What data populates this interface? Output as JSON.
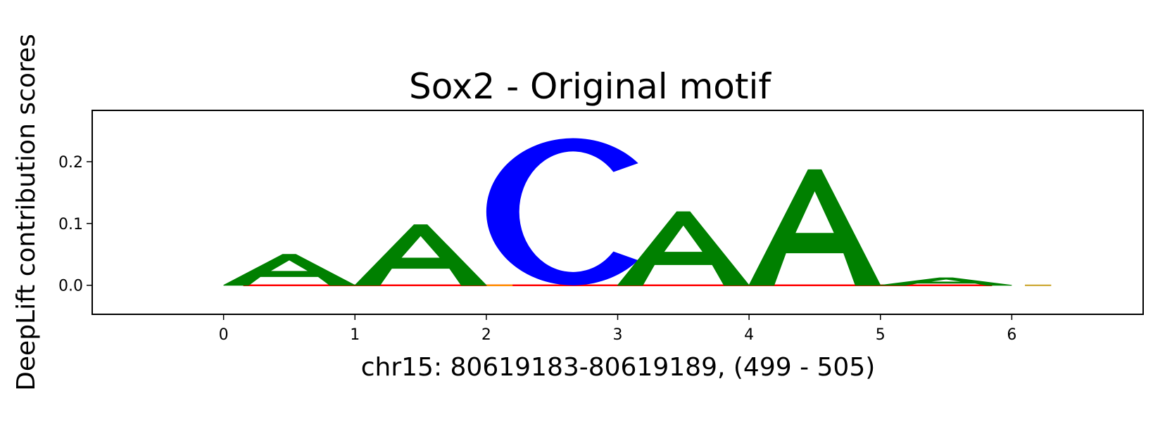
{
  "chart_data": {
    "type": "sequence-logo",
    "title": "Sox2 - Original motif",
    "xlabel": "chr15: 80619183-80619189, (499 - 505)",
    "ylabel": "DeepLift contribution scores",
    "xlim": [
      -1,
      7
    ],
    "ylim": [
      -0.047,
      0.283
    ],
    "xticks": [
      0,
      1,
      2,
      3,
      4,
      5,
      6
    ],
    "yticks": [
      0.0,
      0.1,
      0.2
    ],
    "ytick_labels": [
      "0.0",
      "0.1",
      "0.2"
    ],
    "letters": [
      {
        "position": 0,
        "base": "A",
        "score": 0.05
      },
      {
        "position": 1,
        "base": "A",
        "score": 0.098
      },
      {
        "position": 2,
        "base": "C",
        "score": 0.238
      },
      {
        "position": 3,
        "base": "A",
        "score": 0.119
      },
      {
        "position": 4,
        "base": "A",
        "score": 0.187
      },
      {
        "position": 5,
        "base": "A",
        "score": 0.012
      }
    ],
    "colors": {
      "A": "#008000",
      "C": "#0000ff",
      "G": "#ffa500",
      "T": "#ff0000"
    }
  }
}
